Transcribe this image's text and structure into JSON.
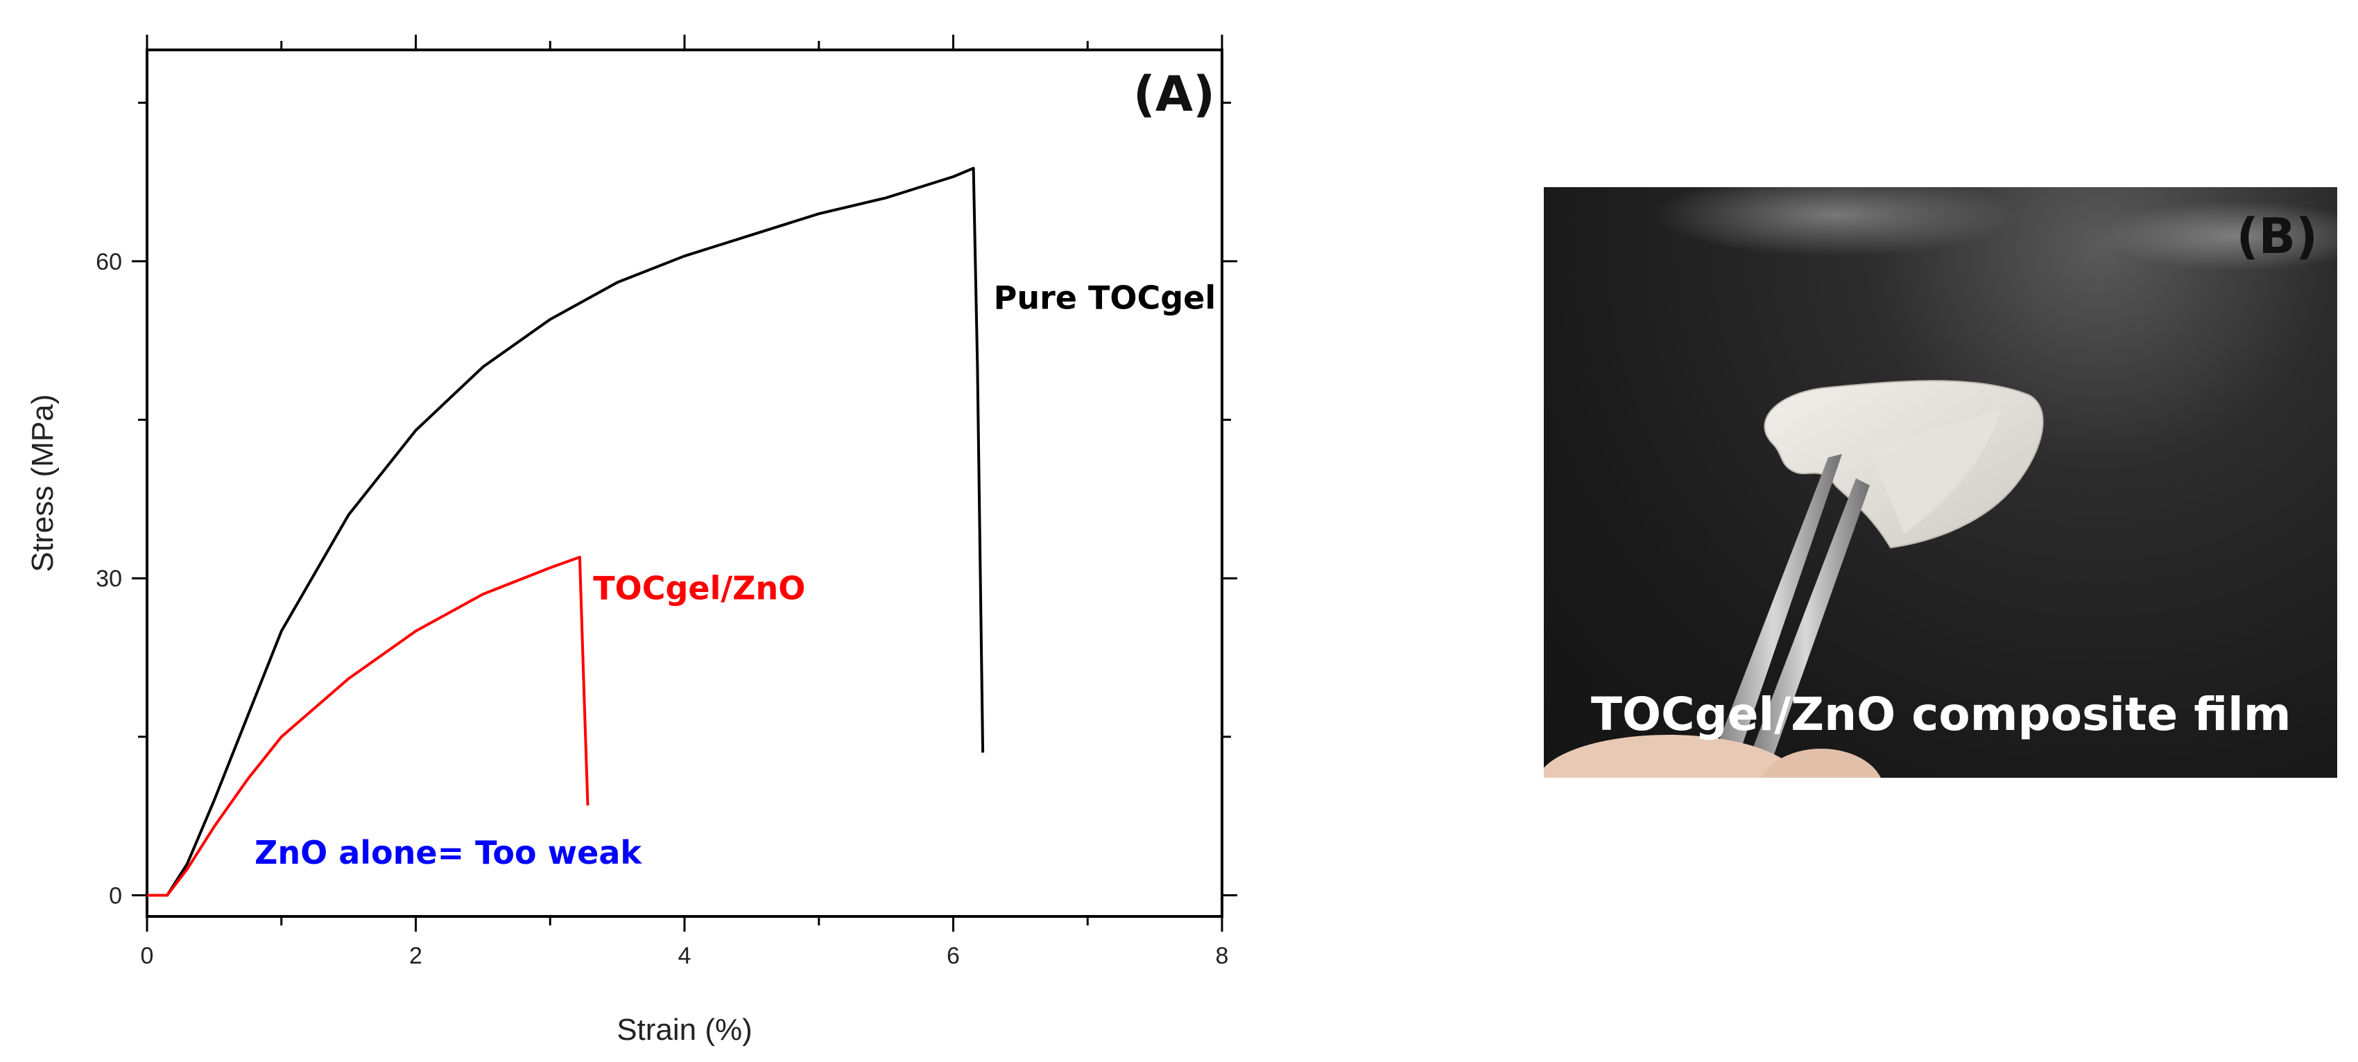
{
  "chart_data": {
    "type": "line",
    "xlabel": "Strain (%)",
    "ylabel": "Stress (MPa)",
    "xlim": [
      0,
      8
    ],
    "ylim": [
      -2,
      80
    ],
    "xticks": [
      0,
      2,
      4,
      6,
      8
    ],
    "yticks": [
      0,
      30,
      60
    ],
    "grid": false,
    "series": [
      {
        "color": "#000000",
        "x": [
          0,
          0.15,
          0.3,
          0.5,
          0.75,
          1.0,
          1.5,
          2.0,
          2.5,
          3.0,
          3.5,
          4.0,
          4.5,
          5.0,
          5.5,
          6.0,
          6.15,
          6.18,
          6.22
        ],
        "y": [
          0,
          0,
          3,
          9,
          17,
          25,
          36,
          44,
          50,
          54.5,
          58,
          60.5,
          62.5,
          64.5,
          66,
          68,
          68.8,
          50,
          13.5
        ]
      },
      {
        "color": "#ff0000",
        "x": [
          0,
          0.15,
          0.3,
          0.5,
          0.75,
          1.0,
          1.5,
          2.0,
          2.5,
          3.0,
          3.22,
          3.25,
          3.28
        ],
        "y": [
          0,
          0,
          2.5,
          6.5,
          11,
          15,
          20.5,
          25,
          28.5,
          31,
          32,
          20,
          8.5
        ]
      }
    ],
    "annotations": [
      {
        "text": "Pure TOCgel",
        "color": "#000000",
        "x": 6.3,
        "y": 55.5
      },
      {
        "text": "TOCgel/ZnO",
        "color": "#ff0000",
        "x": 3.32,
        "y": 28
      },
      {
        "text": "ZnO alone= Too weak",
        "color": "#0000ff",
        "x": 0.8,
        "y": 3
      }
    ],
    "panel_label": "(A)"
  },
  "photo": {
    "panel_label": "(B)",
    "caption": "TOCgel/ZnO composite film"
  }
}
